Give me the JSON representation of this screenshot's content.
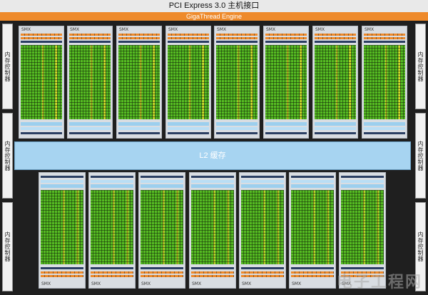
{
  "pcie_label": "PCI Express 3.0 主机接口",
  "gigathread_label": "GigaThread Engine",
  "l2_label": "L2 缓存",
  "memory_controller_label": "内存控制器",
  "smx_label": "SMX",
  "watermark": "电子工程网",
  "colors": {
    "core_green": "#55bb22",
    "special_yellow": "#d6d62a",
    "orange": "#ee8a2b",
    "cache_blue": "#a7d4f1",
    "dark_blue": "#2b3f63"
  },
  "top_row_smx_count": 8,
  "bottom_row_smx_count": 7,
  "memory_controllers_per_side": 3
}
